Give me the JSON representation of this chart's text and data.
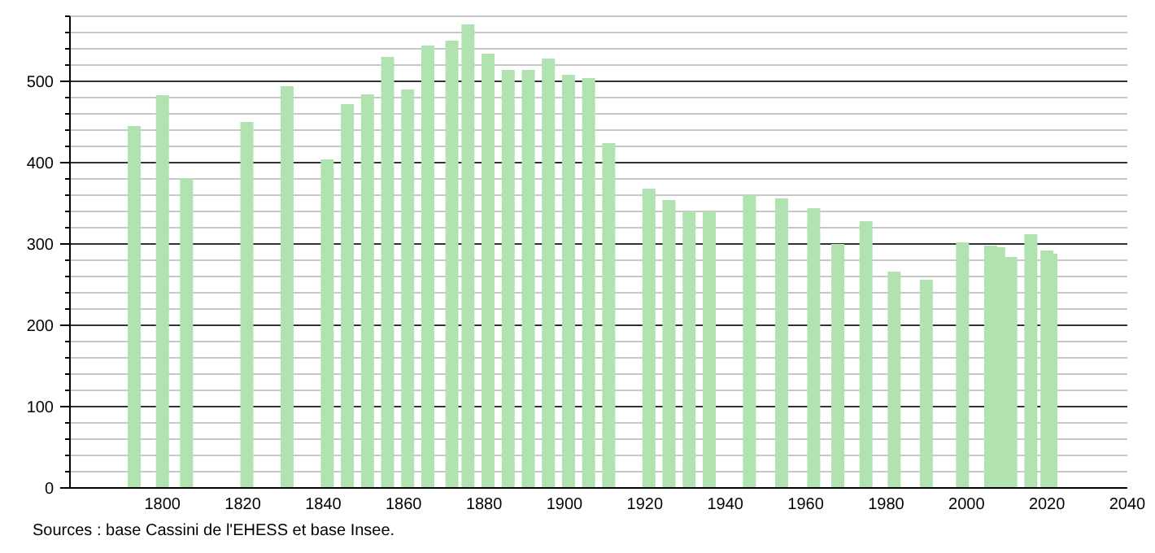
{
  "chart_data": {
    "type": "bar",
    "x": [
      1793,
      1800,
      1806,
      1821,
      1831,
      1841,
      1846,
      1851,
      1856,
      1861,
      1866,
      1872,
      1876,
      1881,
      1886,
      1891,
      1896,
      1901,
      1906,
      1911,
      1921,
      1926,
      1931,
      1936,
      1946,
      1954,
      1962,
      1968,
      1975,
      1982,
      1990,
      1999,
      2006,
      2008,
      2011,
      2016,
      2020,
      2021
    ],
    "values": [
      445,
      483,
      381,
      450,
      494,
      404,
      472,
      484,
      530,
      490,
      544,
      550,
      570,
      534,
      514,
      514,
      528,
      508,
      504,
      424,
      368,
      354,
      340,
      340,
      360,
      356,
      344,
      300,
      328,
      266,
      256,
      302,
      298,
      296,
      284,
      312,
      292,
      288
    ],
    "color": "#b0e3b0",
    "xlim": [
      1777,
      2040
    ],
    "xticks": [
      1800,
      1820,
      1840,
      1860,
      1880,
      1900,
      1920,
      1940,
      1960,
      1980,
      2000,
      2020,
      2040
    ],
    "ylim": [
      0,
      580
    ],
    "yticks": [
      0,
      {
        "value": 20,
        "label": null
      },
      {
        "value": 40,
        "label": null
      },
      {
        "value": 60,
        "label": null
      },
      {
        "value": 80,
        "label": null
      },
      100,
      {
        "value": 120,
        "label": null
      },
      {
        "value": 140,
        "label": null
      },
      {
        "value": 160,
        "label": null
      },
      {
        "value": 180,
        "label": null
      },
      200,
      {
        "value": 220,
        "label": null
      },
      {
        "value": 240,
        "label": null
      },
      {
        "value": 260,
        "label": null
      },
      {
        "value": 280,
        "label": null
      },
      300,
      {
        "value": 320,
        "label": null
      },
      {
        "value": 340,
        "label": null
      },
      {
        "value": 360,
        "label": null
      },
      {
        "value": 380,
        "label": null
      },
      400,
      {
        "value": 420,
        "label": null
      },
      {
        "value": 440,
        "label": null
      },
      {
        "value": 460,
        "label": null
      },
      {
        "value": 480,
        "label": null
      },
      500,
      {
        "value": 520,
        "label": null
      },
      {
        "value": 540,
        "label": null
      },
      {
        "value": 560,
        "label": null
      },
      {
        "value": 580,
        "label": null
      }
    ],
    "grid": true,
    "annotations": [
      "Sources : base Cassini de l'EHESS et base Insee."
    ]
  }
}
